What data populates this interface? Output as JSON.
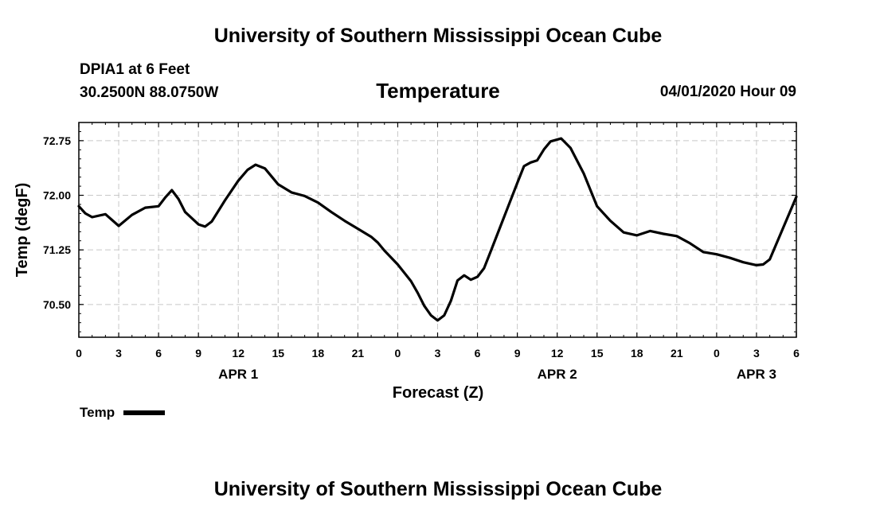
{
  "header": {
    "top_title": "University of Southern Mississippi Ocean Cube",
    "bottom_title": "University of Southern Mississippi Ocean Cube",
    "station_name": "DPIA1 at 6 Feet",
    "station_coords": "30.2500N 88.0750W",
    "datetime": "04/01/2020 Hour 09"
  },
  "chart_data": {
    "type": "line",
    "title": "Temperature",
    "xlabel": "Forecast (Z)",
    "ylabel": "Temp (degF)",
    "x_unit": "hours since APR 1 00Z",
    "xlim": [
      0,
      54
    ],
    "ylim": [
      70.05,
      73.0
    ],
    "y_ticks": [
      70.5,
      71.25,
      72.0,
      72.75
    ],
    "y_tick_labels": [
      "70.50",
      "71.25",
      "72.00",
      "72.75"
    ],
    "x_ticks": [
      0,
      3,
      6,
      9,
      12,
      15,
      18,
      21,
      24,
      27,
      30,
      33,
      36,
      39,
      42,
      45,
      48,
      51,
      54
    ],
    "x_tick_labels": [
      "0",
      "3",
      "6",
      "9",
      "12",
      "15",
      "18",
      "21",
      "0",
      "3",
      "6",
      "9",
      "12",
      "15",
      "18",
      "21",
      "0",
      "3",
      "6"
    ],
    "day_labels": [
      {
        "label": "APR 1",
        "x": 12
      },
      {
        "label": "APR 2",
        "x": 36
      },
      {
        "label": "APR 3",
        "x": 51
      }
    ],
    "grid": true,
    "legend": "bottom-left",
    "series": [
      {
        "name": "Temp",
        "color": "#000000",
        "points": [
          [
            0,
            71.85
          ],
          [
            0.5,
            71.75
          ],
          [
            1,
            71.7
          ],
          [
            2,
            71.74
          ],
          [
            3,
            71.58
          ],
          [
            4,
            71.73
          ],
          [
            5,
            71.83
          ],
          [
            6,
            71.85
          ],
          [
            6.5,
            71.97
          ],
          [
            7,
            72.07
          ],
          [
            7.5,
            71.95
          ],
          [
            8,
            71.77
          ],
          [
            9,
            71.6
          ],
          [
            9.5,
            71.57
          ],
          [
            10,
            71.64
          ],
          [
            11,
            71.93
          ],
          [
            12,
            72.2
          ],
          [
            12.7,
            72.35
          ],
          [
            13.3,
            72.42
          ],
          [
            14,
            72.37
          ],
          [
            15,
            72.15
          ],
          [
            16,
            72.04
          ],
          [
            17,
            71.99
          ],
          [
            18,
            71.9
          ],
          [
            19,
            71.77
          ],
          [
            20,
            71.65
          ],
          [
            21,
            71.54
          ],
          [
            22,
            71.43
          ],
          [
            22.5,
            71.35
          ],
          [
            23,
            71.24
          ],
          [
            24,
            71.05
          ],
          [
            25,
            70.82
          ],
          [
            25.5,
            70.66
          ],
          [
            26,
            70.48
          ],
          [
            26.5,
            70.35
          ],
          [
            27,
            70.28
          ],
          [
            27.5,
            70.35
          ],
          [
            28,
            70.55
          ],
          [
            28.5,
            70.83
          ],
          [
            29,
            70.9
          ],
          [
            29.5,
            70.84
          ],
          [
            30,
            70.88
          ],
          [
            30.5,
            71.0
          ],
          [
            31,
            71.23
          ],
          [
            32,
            71.7
          ],
          [
            33,
            72.17
          ],
          [
            33.5,
            72.4
          ],
          [
            34,
            72.45
          ],
          [
            34.5,
            72.48
          ],
          [
            35,
            72.63
          ],
          [
            35.5,
            72.74
          ],
          [
            36.3,
            72.78
          ],
          [
            37,
            72.65
          ],
          [
            38,
            72.3
          ],
          [
            39,
            71.85
          ],
          [
            40,
            71.65
          ],
          [
            41,
            71.49
          ],
          [
            42,
            71.45
          ],
          [
            43,
            71.51
          ],
          [
            44,
            71.47
          ],
          [
            45,
            71.44
          ],
          [
            46,
            71.34
          ],
          [
            47,
            71.22
          ],
          [
            48,
            71.19
          ],
          [
            49,
            71.14
          ],
          [
            50,
            71.08
          ],
          [
            51,
            71.04
          ],
          [
            51.5,
            71.05
          ],
          [
            52,
            71.12
          ],
          [
            53,
            71.55
          ],
          [
            54,
            71.98
          ]
        ]
      }
    ]
  }
}
